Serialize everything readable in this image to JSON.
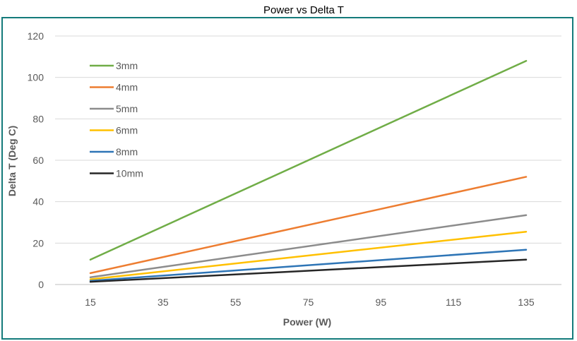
{
  "chart_data": {
    "type": "line",
    "title": "Power vs Delta T",
    "xlabel": "Power (W)",
    "ylabel": "Delta T (Deg C)",
    "x": [
      15,
      135
    ],
    "xticks": [
      "15",
      "35",
      "55",
      "75",
      "95",
      "115",
      "135"
    ],
    "yticks": [
      "0",
      "20",
      "40",
      "60",
      "80",
      "100",
      "120"
    ],
    "xlim": [
      15,
      135
    ],
    "ylim": [
      0,
      120
    ],
    "grid": "horizontal",
    "legend_position": "top-left",
    "series": [
      {
        "name": "3mm",
        "color": "#70ad47",
        "values": [
          12,
          108
        ]
      },
      {
        "name": "4mm",
        "color": "#ed7d31",
        "values": [
          5.5,
          52
        ]
      },
      {
        "name": "5mm",
        "color": "#8c8c8c",
        "values": [
          3.5,
          33.5
        ]
      },
      {
        "name": "6mm",
        "color": "#ffc000",
        "values": [
          2.5,
          25.5
        ]
      },
      {
        "name": "8mm",
        "color": "#2e75b6",
        "values": [
          1.8,
          16.8
        ]
      },
      {
        "name": "10mm",
        "color": "#262626",
        "values": [
          1.3,
          12
        ]
      }
    ],
    "colors": {
      "frame": "#147b7b",
      "grid": "#d9d9d9",
      "text": "#595959"
    }
  }
}
